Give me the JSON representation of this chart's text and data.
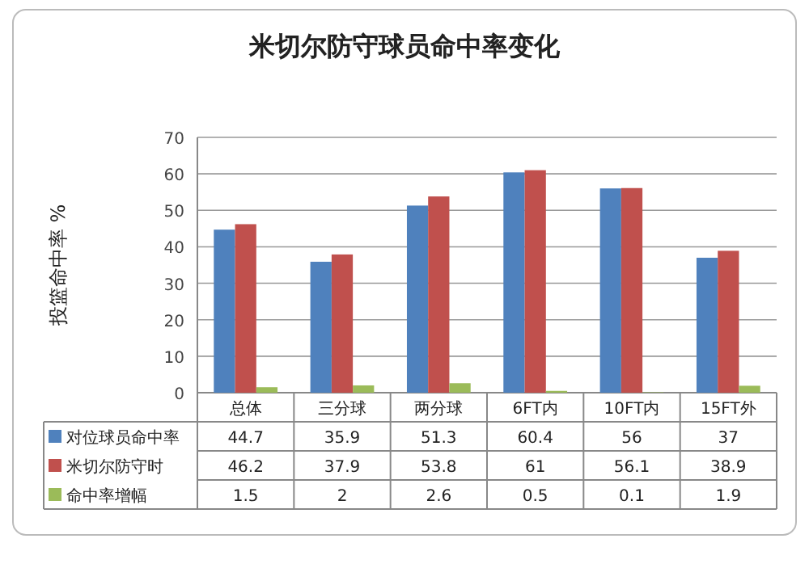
{
  "chart_data": {
    "type": "bar",
    "title": "米切尔防守球员命中率变化",
    "ylabel": "投篮命中率 %",
    "categories": [
      "总体",
      "三分球",
      "两分球",
      "6FT内",
      "10FT内",
      "15FT外"
    ],
    "series": [
      {
        "name": "对位球员命中率",
        "color": "#4f81bd",
        "values": [
          44.7,
          35.9,
          51.3,
          60.4,
          56,
          37
        ]
      },
      {
        "name": "米切尔防守时",
        "color": "#c0504d",
        "values": [
          46.2,
          37.9,
          53.8,
          61,
          56.1,
          38.9
        ]
      },
      {
        "name": "命中率增幅",
        "color": "#9bbb59",
        "values": [
          1.5,
          2,
          2.6,
          0.5,
          0.1,
          1.9
        ]
      }
    ],
    "ylim": [
      0,
      70
    ],
    "yticks": [
      0,
      10,
      20,
      30,
      40,
      50,
      60,
      70
    ],
    "grid": "y",
    "data_labels": true,
    "legend": "bottom"
  }
}
